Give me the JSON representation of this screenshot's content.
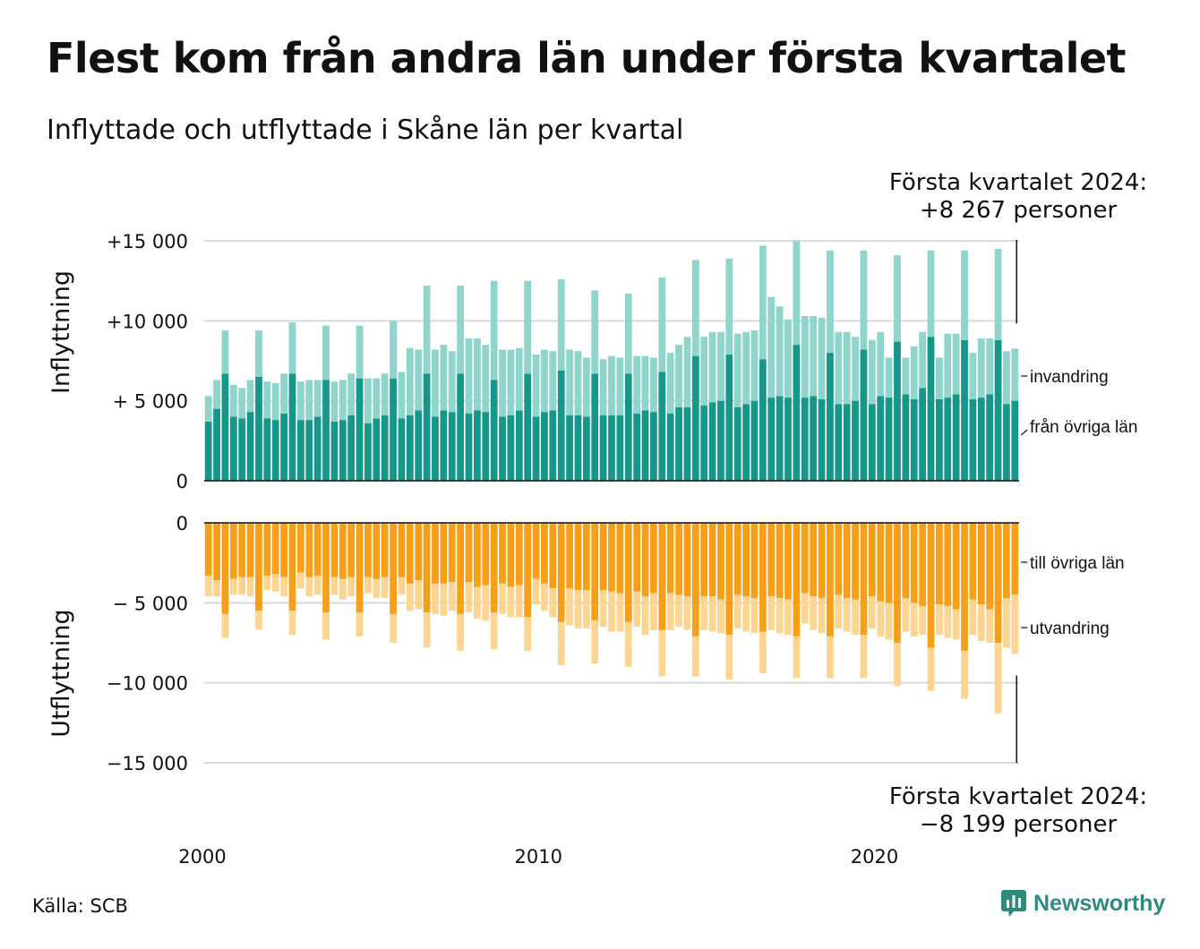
{
  "title": "Flest kom från andra län under första kvartalet",
  "subtitle": "Inflyttade och utflyttade i Skåne län per kvartal",
  "source": "Källa: SCB",
  "brand": "Newsworthy",
  "colors": {
    "inflow_domestic": "#17978a",
    "inflow_immigration": "#8fd5cc",
    "outflow_domestic": "#f6a01a",
    "outflow_emigration": "#fdd592"
  },
  "top_annotation": {
    "line1": "Första kvartalet 2024:",
    "line2": "+8 267 personer"
  },
  "bottom_annotation": {
    "line1": "Första kvartalet 2024:",
    "line2": "−8 199 personer"
  },
  "chart_data": {
    "type": "bar",
    "stacked": true,
    "panels": [
      {
        "name": "top",
        "ylabel": "Inflyttning",
        "yticks": [
          "+15 000",
          "+10 000",
          "+ 5 000",
          "0"
        ],
        "ylim": [
          0,
          15000
        ],
        "series_labels": [
          "invandring",
          "från övriga län"
        ]
      },
      {
        "name": "bottom",
        "ylabel": "Utflyttning",
        "yticks": [
          "0",
          "− 5 000",
          "−10 000",
          "−15 000"
        ],
        "ylim": [
          -15000,
          0
        ],
        "series_labels": [
          "till övriga län",
          "utvandring"
        ]
      }
    ],
    "xticks": [
      "2000",
      "2010",
      "2020"
    ],
    "x_start": "2000 Q1",
    "x_end": "2024 Q1",
    "inflow_domestic": [
      3700,
      4500,
      6700,
      4000,
      3900,
      4300,
      6500,
      3900,
      3800,
      4200,
      6700,
      3800,
      3800,
      4000,
      6300,
      3700,
      3800,
      4100,
      6400,
      3600,
      3900,
      4100,
      6400,
      3900,
      4100,
      4400,
      6700,
      4000,
      4400,
      4300,
      6700,
      4200,
      4400,
      4300,
      6300,
      4000,
      4100,
      4400,
      6700,
      4000,
      4300,
      4400,
      6900,
      4100,
      4100,
      4000,
      6700,
      4100,
      4100,
      4100,
      6700,
      4200,
      4400,
      4300,
      6800,
      4200,
      4600,
      4600,
      7800,
      4700,
      4900,
      5000,
      7900,
      4600,
      4800,
      5000,
      7600,
      5200,
      5300,
      5200,
      8500,
      5200,
      5300,
      5100,
      8000,
      4800,
      4800,
      5000,
      8200,
      4800,
      5300,
      5200,
      8700,
      5400,
      5100,
      5800,
      9000,
      5100,
      5200,
      5400,
      8800,
      5100,
      5200,
      5400,
      8800,
      4800,
      5000
    ],
    "inflow_immigration": [
      1600,
      1800,
      2700,
      2000,
      1900,
      2000,
      2900,
      2300,
      2300,
      2500,
      3200,
      2400,
      2500,
      2300,
      3400,
      2500,
      2500,
      2600,
      3300,
      2800,
      2500,
      2600,
      3600,
      2900,
      4200,
      3800,
      5500,
      4200,
      4100,
      3800,
      5500,
      4700,
      4500,
      4200,
      6200,
      4200,
      4100,
      3900,
      5800,
      3900,
      3900,
      3700,
      5700,
      4100,
      4000,
      3700,
      5200,
      3500,
      3700,
      3600,
      5000,
      3600,
      3400,
      3400,
      5900,
      3800,
      3900,
      4400,
      6000,
      4300,
      4400,
      4300,
      6000,
      4600,
      4500,
      4400,
      7100,
      6300,
      5600,
      4900,
      6500,
      5100,
      5000,
      5100,
      6400,
      4500,
      4500,
      4000,
      6200,
      4000,
      4000,
      2500,
      5400,
      2300,
      3300,
      3500,
      5400,
      2600,
      4000,
      3800,
      5600,
      2900,
      3700,
      3500,
      5700,
      3300,
      3267
    ],
    "outflow_domestic": [
      3300,
      3600,
      5700,
      3500,
      3400,
      3400,
      5500,
      3300,
      3200,
      3400,
      5500,
      3100,
      3400,
      3300,
      5600,
      3400,
      3500,
      3400,
      5600,
      3400,
      3500,
      3400,
      5700,
      3400,
      3800,
      3600,
      5600,
      3800,
      3800,
      3700,
      5700,
      3700,
      4000,
      3900,
      5600,
      3800,
      4000,
      3900,
      5900,
      3500,
      3800,
      4100,
      6200,
      4100,
      4200,
      4200,
      6100,
      4200,
      4300,
      4400,
      6200,
      4300,
      4600,
      4400,
      6700,
      4400,
      4500,
      4600,
      7100,
      4600,
      4600,
      4800,
      7000,
      4500,
      4600,
      4700,
      6800,
      4600,
      4700,
      4800,
      7100,
      4400,
      4600,
      4700,
      7100,
      4500,
      4700,
      4800,
      7000,
      4600,
      4900,
      5000,
      7500,
      4700,
      5000,
      5200,
      7800,
      5100,
      5200,
      5400,
      8000,
      4800,
      5100,
      5400,
      7500,
      4700,
      4500
    ],
    "outflow_emigration": [
      1300,
      1000,
      1500,
      1000,
      1100,
      1200,
      1200,
      900,
      1100,
      1200,
      1500,
      1000,
      1200,
      1200,
      1700,
      1100,
      1300,
      1200,
      1500,
      1000,
      1200,
      1300,
      1800,
      1100,
      1700,
      1800,
      2200,
      1900,
      2000,
      1800,
      2300,
      1900,
      2000,
      2200,
      2300,
      1900,
      1900,
      2000,
      2100,
      1600,
      1700,
      1800,
      2700,
      2300,
      2400,
      2400,
      2700,
      2300,
      2500,
      2400,
      2800,
      2200,
      2400,
      2300,
      2900,
      2300,
      2000,
      2100,
      2500,
      2100,
      2200,
      2100,
      2800,
      2100,
      2200,
      2200,
      2600,
      2100,
      2200,
      2200,
      2600,
      1900,
      2100,
      2200,
      2600,
      2100,
      2100,
      2200,
      2700,
      2000,
      2200,
      2300,
      2700,
      2100,
      2100,
      1800,
      2700,
      1900,
      2000,
      1900,
      3000,
      2200,
      2300,
      2100,
      4400,
      3100,
      3699
    ]
  }
}
